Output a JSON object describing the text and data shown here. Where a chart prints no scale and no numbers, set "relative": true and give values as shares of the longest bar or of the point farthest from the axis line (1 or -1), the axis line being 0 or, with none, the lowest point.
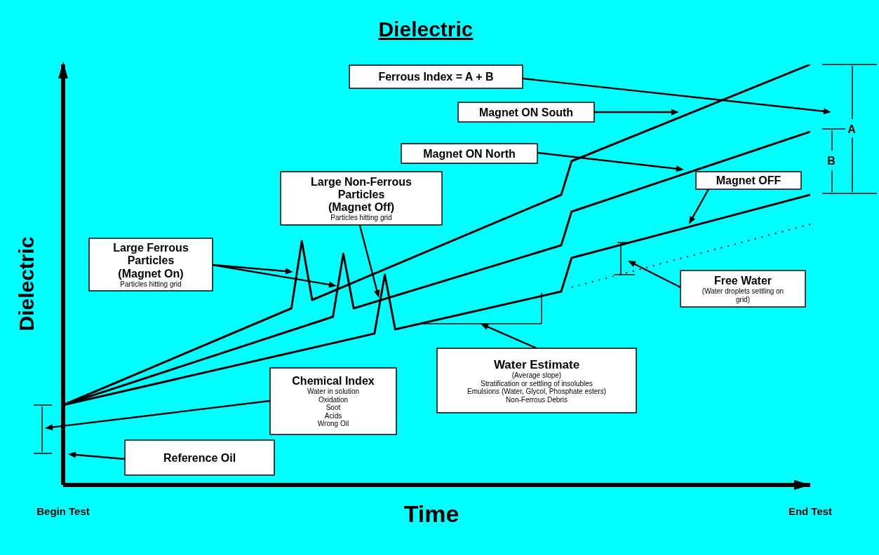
{
  "chart_data": {
    "type": "line",
    "title": "Dielectric",
    "xlabel": "Time",
    "ylabel": "Dielectric",
    "relative": true,
    "line_style": "solid",
    "categories": [
      "Begin Test",
      null,
      null,
      null,
      null,
      null,
      null,
      null,
      null,
      null,
      null,
      null,
      null,
      null,
      null,
      null,
      null,
      null,
      null,
      null,
      null,
      null,
      null,
      null,
      null,
      null,
      null,
      null,
      null,
      null,
      null,
      null,
      null,
      null,
      null,
      null,
      null,
      null,
      null,
      null,
      null,
      null,
      null,
      null,
      null,
      null,
      null,
      null,
      null,
      null,
      null,
      null,
      null,
      null,
      null,
      null,
      null,
      null,
      null,
      null,
      null,
      null,
      null,
      null,
      null,
      null,
      null,
      null,
      null,
      null,
      null,
      null,
      "End Test"
    ],
    "series": [
      {
        "name": "Magnet ON South",
        "color": "#000000",
        "values": [
          0.19,
          null,
          null,
          null,
          null,
          null,
          null,
          null,
          null,
          null,
          null,
          null,
          null,
          null,
          null,
          null,
          null,
          null,
          null,
          null,
          null,
          null,
          0.42,
          0.58,
          0.44,
          null,
          null,
          null,
          null,
          null,
          null,
          null,
          null,
          null,
          null,
          null,
          null,
          null,
          null,
          null,
          null,
          null,
          null,
          null,
          null,
          null,
          null,
          null,
          0.69,
          0.77,
          null,
          null,
          null,
          null,
          null,
          null,
          null,
          null,
          null,
          null,
          null,
          null,
          null,
          null,
          null,
          null,
          null,
          null,
          null,
          null,
          null,
          null,
          1.0
        ]
      },
      {
        "name": "Magnet ON North",
        "color": "#000000",
        "values": [
          0.19,
          null,
          null,
          null,
          null,
          null,
          null,
          null,
          null,
          null,
          null,
          null,
          null,
          null,
          null,
          null,
          null,
          null,
          null,
          null,
          null,
          null,
          null,
          null,
          null,
          null,
          0.4,
          0.55,
          0.42,
          null,
          null,
          null,
          null,
          null,
          null,
          null,
          null,
          null,
          null,
          null,
          null,
          null,
          null,
          null,
          null,
          null,
          null,
          null,
          0.57,
          0.65,
          null,
          null,
          null,
          null,
          null,
          null,
          null,
          null,
          null,
          null,
          null,
          null,
          null,
          null,
          null,
          null,
          null,
          null,
          null,
          null,
          null,
          null,
          0.84
        ]
      },
      {
        "name": "Magnet OFF",
        "color": "#000000",
        "values": [
          0.19,
          null,
          null,
          null,
          null,
          null,
          null,
          null,
          null,
          null,
          null,
          null,
          null,
          null,
          null,
          null,
          null,
          null,
          null,
          null,
          null,
          null,
          null,
          null,
          null,
          null,
          null,
          null,
          null,
          null,
          0.36,
          0.5,
          0.37,
          null,
          null,
          null,
          null,
          null,
          null,
          null,
          null,
          null,
          null,
          null,
          null,
          null,
          null,
          null,
          0.46,
          0.54,
          null,
          null,
          null,
          null,
          null,
          null,
          null,
          null,
          null,
          null,
          null,
          null,
          null,
          null,
          null,
          null,
          null,
          null,
          null,
          null,
          null,
          null,
          0.69
        ]
      },
      {
        "color": "#000000",
        "line_style": "dotted",
        "values": [
          null,
          null,
          null,
          null,
          null,
          null,
          null,
          null,
          null,
          null,
          null,
          null,
          null,
          null,
          null,
          null,
          null,
          null,
          null,
          null,
          null,
          null,
          null,
          null,
          null,
          null,
          null,
          null,
          null,
          null,
          null,
          null,
          null,
          null,
          null,
          null,
          null,
          null,
          null,
          null,
          null,
          null,
          null,
          null,
          null,
          null,
          null,
          null,
          null,
          0.47,
          null,
          null,
          null,
          null,
          null,
          null,
          null,
          null,
          null,
          null,
          null,
          null,
          null,
          null,
          null,
          null,
          null,
          null,
          null,
          null,
          null,
          null,
          0.62
        ]
      }
    ],
    "annotations": [
      "Ferrous Index = A + B",
      "Large Non-Ferrous\nParticles\n(Magnet Off)\nParticles hitting grid",
      "Large Ferrous\nParticles\n(Magnet On)\nParticles hitting grid",
      "Free Water\n(Water droplets settling on\ngrid)",
      "Water Estimate\n(Average slope)\nStratification or settling of insolubles\nEmulsions (Water, Glycol, Phosphate esters)\nNon-Ferrous Debris",
      "Chemical Index\nWater in solution\nOxidation\nSoot\nAcids\nWrong Oil",
      "Reference Oil",
      "A",
      "B"
    ]
  }
}
